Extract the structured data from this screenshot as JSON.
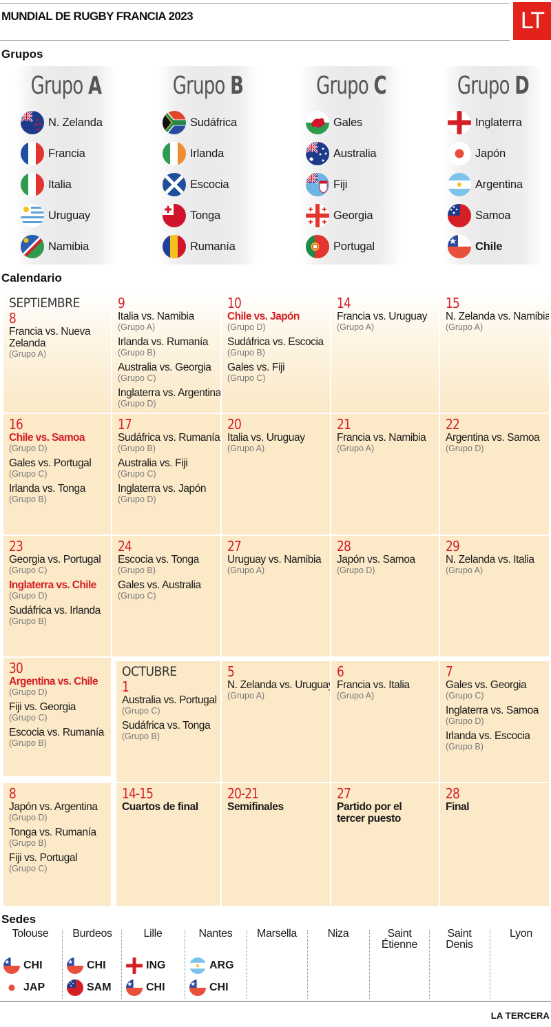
{
  "header": {
    "title": "MUNDIAL DE RUGBY FRANCIA 2023",
    "logo": "LT"
  },
  "sections": {
    "groups": "Grupos",
    "calendar": "Calendario",
    "venues": "Sedes"
  },
  "groups": [
    {
      "label": "Grupo",
      "letter": "A",
      "teams": [
        {
          "name": "N. Zelanda",
          "flag": "new-zealand-flag-icon"
        },
        {
          "name": "Francia",
          "flag": "france-flag-icon"
        },
        {
          "name": "Italia",
          "flag": "italy-flag-icon"
        },
        {
          "name": "Uruguay",
          "flag": "uruguay-flag-icon"
        },
        {
          "name": "Namibia",
          "flag": "namibia-flag-icon"
        }
      ]
    },
    {
      "label": "Grupo",
      "letter": "B",
      "teams": [
        {
          "name": "Sudáfrica",
          "flag": "south-africa-flag-icon"
        },
        {
          "name": "Irlanda",
          "flag": "ireland-flag-icon"
        },
        {
          "name": "Escocia",
          "flag": "scotland-flag-icon"
        },
        {
          "name": "Tonga",
          "flag": "tonga-flag-icon"
        },
        {
          "name": "Rumanía",
          "flag": "romania-flag-icon"
        }
      ]
    },
    {
      "label": "Grupo",
      "letter": "C",
      "teams": [
        {
          "name": "Gales",
          "flag": "wales-flag-icon"
        },
        {
          "name": "Australia",
          "flag": "australia-flag-icon"
        },
        {
          "name": "Fiji",
          "flag": "fiji-flag-icon"
        },
        {
          "name": "Georgia",
          "flag": "georgia-flag-icon"
        },
        {
          "name": "Portugal",
          "flag": "portugal-flag-icon"
        }
      ]
    },
    {
      "label": "Grupo",
      "letter": "D",
      "teams": [
        {
          "name": "Inglaterra",
          "flag": "england-flag-icon"
        },
        {
          "name": "Japón",
          "flag": "japan-flag-icon"
        },
        {
          "name": "Argentina",
          "flag": "argentina-flag-icon"
        },
        {
          "name": "Samoa",
          "flag": "samoa-flag-icon"
        },
        {
          "name": "Chile",
          "flag": "chile-flag-icon"
        }
      ]
    }
  ],
  "calendar": {
    "months": {
      "sep": "SEPTIEMBRE",
      "oct": "OCTUBRE"
    },
    "cells": [
      {
        "day": "8",
        "month": "sep",
        "matches": [
          {
            "text": "Francia vs. Nueva Zelanda",
            "group": "(Grupo A)"
          }
        ]
      },
      {
        "day": "9",
        "matches": [
          {
            "text": "Italia vs. Namibia",
            "group": "(Grupo A)"
          },
          {
            "text": "Irlanda vs. Rumanía",
            "group": "(Grupo B)"
          },
          {
            "text": "Australia vs. Georgia",
            "group": "(Grupo C)"
          },
          {
            "text": "Inglaterra vs. Argentina",
            "group": "(Grupo D)"
          }
        ]
      },
      {
        "day": "10",
        "matches": [
          {
            "text": "Chile vs. Japón",
            "group": "(Grupo D)",
            "chile": true
          },
          {
            "text": "Sudáfrica vs. Escocia",
            "group": "(Grupo B)"
          },
          {
            "text": "Gales vs. Fiji",
            "group": "(Grupo C)"
          }
        ]
      },
      {
        "day": "14",
        "matches": [
          {
            "text": "Francia vs. Uruguay",
            "group": "(Grupo A)"
          }
        ]
      },
      {
        "day": "15",
        "matches": [
          {
            "text": "N. Zelanda vs. Namibia",
            "group": "(Grupo A)"
          }
        ]
      },
      {
        "day": "16",
        "matches": [
          {
            "text": "Chile vs. Samoa",
            "group": "(Grupo D)",
            "chile": true
          },
          {
            "text": "Gales vs. Portugal",
            "group": "(Grupo C)"
          },
          {
            "text": "Irlanda vs. Tonga",
            "group": "(Grupo B)"
          }
        ]
      },
      {
        "day": "17",
        "matches": [
          {
            "text": "Sudáfrica vs. Rumanía",
            "group": "(Grupo B)"
          },
          {
            "text": "Australia vs. Fiji",
            "group": "(Grupo C)"
          },
          {
            "text": "Inglaterra vs. Japón",
            "group": "(Grupo D)"
          }
        ]
      },
      {
        "day": "20",
        "matches": [
          {
            "text": "Italia vs. Uruguay",
            "group": "(Grupo A)"
          }
        ]
      },
      {
        "day": "21",
        "matches": [
          {
            "text": "Francia vs. Namibia",
            "group": "(Grupo A)"
          }
        ]
      },
      {
        "day": "22",
        "matches": [
          {
            "text": "Argentina vs. Samoa",
            "group": "(Grupo D)"
          }
        ]
      },
      {
        "day": "23",
        "matches": [
          {
            "text": "Georgia vs. Portugal",
            "group": "(Grupo C)"
          },
          {
            "text": "Inglaterra vs. Chile",
            "group": "(Grupo D)",
            "chile": true
          },
          {
            "text": "Sudáfrica vs. Irlanda",
            "group": "(Grupo B)"
          }
        ]
      },
      {
        "day": "24",
        "matches": [
          {
            "text": "Escocia vs. Tonga",
            "group": "(Grupo B)"
          },
          {
            "text": "Gales vs. Australia",
            "group": "(Grupo C)"
          }
        ]
      },
      {
        "day": "27",
        "matches": [
          {
            "text": "Uruguay vs. Namibia",
            "group": "(Grupo A)"
          }
        ]
      },
      {
        "day": "28",
        "matches": [
          {
            "text": "Japón vs. Samoa",
            "group": "(Grupo D)"
          }
        ]
      },
      {
        "day": "29",
        "matches": [
          {
            "text": "N. Zelanda vs. Italia",
            "group": "(Grupo A)"
          }
        ]
      },
      {
        "day": "30",
        "matches": [
          {
            "text": "Argentina vs. Chile",
            "group": "(Grupo D)",
            "chile": true
          },
          {
            "text": "Fiji vs. Georgia",
            "group": "(Grupo C)"
          },
          {
            "text": "Escocia vs. Rumanía",
            "group": "(Grupo B)"
          }
        ]
      },
      {
        "day": "1",
        "month": "oct",
        "matches": [
          {
            "text": "Australia vs. Portugal",
            "group": "(Grupo C)"
          },
          {
            "text": "Sudáfrica vs. Tonga",
            "group": "(Grupo B)"
          }
        ]
      },
      {
        "day": "5",
        "matches": [
          {
            "text": "N. Zelanda vs. Uruguay",
            "group": "(Grupo A)"
          }
        ]
      },
      {
        "day": "6",
        "matches": [
          {
            "text": "Francia vs. Italia",
            "group": "(Grupo A)"
          }
        ]
      },
      {
        "day": "7",
        "matches": [
          {
            "text": "Gales vs. Georgia",
            "group": "(Grupo C)"
          },
          {
            "text": "Inglaterra vs. Samoa",
            "group": "(Grupo D)"
          },
          {
            "text": "Irlanda vs. Escocia",
            "group": "(Grupo B)"
          }
        ]
      },
      {
        "day": "8",
        "matches": [
          {
            "text": "Japón vs. Argentina",
            "group": "(Grupo D)"
          },
          {
            "text": "Tonga vs. Rumanía",
            "group": "(Grupo B)"
          },
          {
            "text": "Fiji vs. Portugal",
            "group": "(Grupo C)"
          }
        ]
      },
      {
        "day": "14-15",
        "matches": [
          {
            "text": "Cuartos de final",
            "bold": true
          }
        ]
      },
      {
        "day": "20-21",
        "matches": [
          {
            "text": "Semifinales",
            "bold": true
          }
        ]
      },
      {
        "day": "27",
        "matches": [
          {
            "text": "Partido por el tercer puesto",
            "bold": true
          }
        ]
      },
      {
        "day": "28",
        "matches": [
          {
            "text": "Final",
            "bold": true
          }
        ]
      }
    ]
  },
  "venues": [
    {
      "name": "Tolouse",
      "teams": [
        {
          "label": "CHI",
          "flag": "chile-flag-icon"
        },
        {
          "label": "JAP",
          "flag": "japan-flag-icon"
        }
      ]
    },
    {
      "name": "Burdeos",
      "teams": [
        {
          "label": "CHI",
          "flag": "chile-flag-icon"
        },
        {
          "label": "SAM",
          "flag": "samoa-flag-icon"
        }
      ]
    },
    {
      "name": "Lille",
      "teams": [
        {
          "label": "ING",
          "flag": "england-flag-icon"
        },
        {
          "label": "CHI",
          "flag": "chile-flag-icon"
        }
      ]
    },
    {
      "name": "Nantes",
      "teams": [
        {
          "label": "ARG",
          "flag": "argentina-flag-icon"
        },
        {
          "label": "CHI",
          "flag": "chile-flag-icon"
        }
      ]
    },
    {
      "name": "Marsella",
      "teams": []
    },
    {
      "name": "Niza",
      "teams": []
    },
    {
      "name": "Saint Étienne",
      "teams": []
    },
    {
      "name": "Saint Denis",
      "teams": []
    },
    {
      "name": "Lyon",
      "teams": []
    }
  ],
  "footer": {
    "credit": "LA TERCERA"
  }
}
